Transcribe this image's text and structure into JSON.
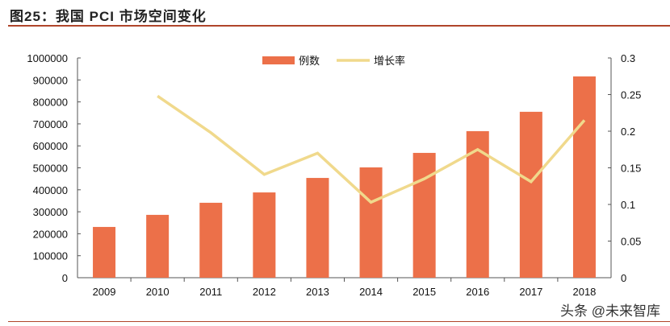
{
  "title": "图25：我国 PCI 市场空间变化",
  "watermark": "头条 @未来智库",
  "chart_data": {
    "type": "bar+line",
    "categories": [
      "2009",
      "2010",
      "2011",
      "2012",
      "2013",
      "2014",
      "2015",
      "2016",
      "2017",
      "2018"
    ],
    "series": [
      {
        "name": "例数",
        "type": "bar",
        "axis": "left",
        "color": "#ec7049",
        "values": [
          231000,
          286000,
          341000,
          388000,
          454000,
          502000,
          568000,
          667000,
          755000,
          916000
        ]
      },
      {
        "name": "增长率",
        "type": "line",
        "axis": "right",
        "color": "#f0d98c",
        "values": [
          null,
          0.248,
          0.198,
          0.141,
          0.17,
          0.103,
          0.135,
          0.175,
          0.131,
          0.215
        ]
      }
    ],
    "left_axis": {
      "ylim": [
        0,
        1000000
      ],
      "ticks": [
        "0",
        "100000",
        "200000",
        "300000",
        "400000",
        "500000",
        "600000",
        "700000",
        "800000",
        "900000",
        "1000000"
      ]
    },
    "right_axis": {
      "ylim": [
        0,
        0.3
      ],
      "ticks": [
        "0",
        "0.05",
        "0.1",
        "0.15",
        "0.2",
        "0.25",
        "0.3"
      ]
    },
    "legend": "top-center",
    "grid": false
  }
}
